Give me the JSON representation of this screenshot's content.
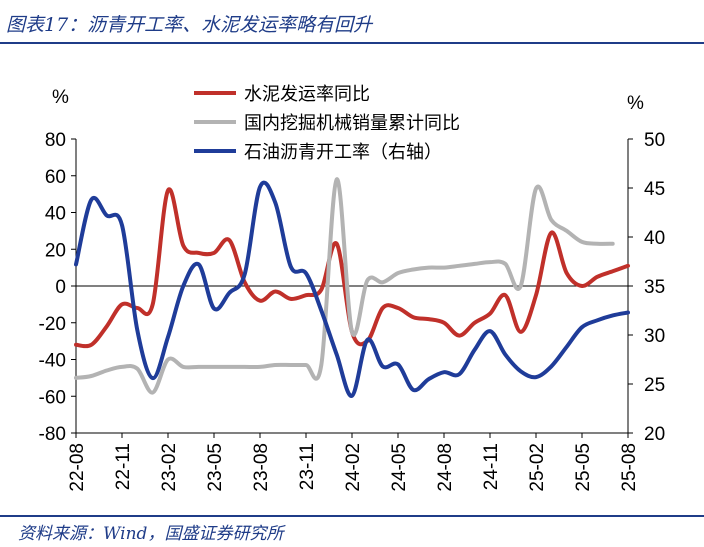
{
  "title": "图表17：沥青开工率、水泥发运率略有回升",
  "source": "资料来源：Wind，国盛证券研究所",
  "chart_data": {
    "type": "line",
    "left_unit": "%",
    "right_unit": "%",
    "ylim_left": [
      -80,
      80
    ],
    "yticks_left": [
      "80",
      "60",
      "40",
      "20",
      "0",
      "-20",
      "-40",
      "-60",
      "-80"
    ],
    "ylim_right": [
      20,
      50
    ],
    "yticks_right": [
      "50",
      "45",
      "40",
      "35",
      "30",
      "25",
      "20"
    ],
    "xlim": [
      "2022-08",
      "2025-08"
    ],
    "x_tick_labels": [
      "22-08",
      "22-11",
      "23-02",
      "23-05",
      "23-08",
      "23-11",
      "24-02",
      "24-05",
      "24-08",
      "24-11",
      "25-02",
      "25-05",
      "25-08"
    ],
    "legend": {
      "position": "top-center"
    },
    "series": [
      {
        "name": "水泥发运率同比",
        "color": "#c0302a",
        "axis": "left",
        "points": [
          [
            "2022-08",
            -32
          ],
          [
            "2022-09",
            -32
          ],
          [
            "2022-10",
            -22
          ],
          [
            "2022-11",
            -10
          ],
          [
            "2022-12",
            -12
          ],
          [
            "2023-01",
            -10
          ],
          [
            "2023-02",
            52
          ],
          [
            "2023-03",
            22
          ],
          [
            "2023-04",
            18
          ],
          [
            "2023-05",
            18
          ],
          [
            "2023-06",
            25
          ],
          [
            "2023-07",
            2
          ],
          [
            "2023-08",
            -8
          ],
          [
            "2023-09",
            -3
          ],
          [
            "2023-10",
            -7
          ],
          [
            "2023-11",
            -5
          ],
          [
            "2023-12",
            -2
          ],
          [
            "2024-01",
            23
          ],
          [
            "2024-02",
            -25
          ],
          [
            "2024-03",
            -30
          ],
          [
            "2024-04",
            -12
          ],
          [
            "2024-05",
            -12
          ],
          [
            "2024-06",
            -17
          ],
          [
            "2024-07",
            -18
          ],
          [
            "2024-08",
            -20
          ],
          [
            "2024-09",
            -27
          ],
          [
            "2024-10",
            -20
          ],
          [
            "2024-11",
            -15
          ],
          [
            "2024-12",
            -5
          ],
          [
            "2025-01",
            -25
          ],
          [
            "2025-02",
            -5
          ],
          [
            "2025-03",
            29
          ],
          [
            "2025-04",
            7
          ],
          [
            "2025-05",
            0
          ],
          [
            "2025-06",
            5
          ],
          [
            "2025-07",
            8
          ],
          [
            "2025-08",
            11
          ]
        ]
      },
      {
        "name": "国内挖掘机械销量累计同比",
        "color": "#b3b3b3",
        "axis": "left",
        "points": [
          [
            "2022-08",
            -50
          ],
          [
            "2022-09",
            -49
          ],
          [
            "2022-10",
            -46
          ],
          [
            "2022-11",
            -44
          ],
          [
            "2022-12",
            -45
          ],
          [
            "2023-01",
            -58
          ],
          [
            "2023-02",
            -40
          ],
          [
            "2023-03",
            -44
          ],
          [
            "2023-04",
            -44
          ],
          [
            "2023-05",
            -44
          ],
          [
            "2023-06",
            -44
          ],
          [
            "2023-07",
            -44
          ],
          [
            "2023-08",
            -44
          ],
          [
            "2023-09",
            -43
          ],
          [
            "2023-10",
            -43
          ],
          [
            "2023-11",
            -43
          ],
          [
            "2023-12",
            -43
          ],
          [
            "2024-01",
            58
          ],
          [
            "2024-02",
            -25
          ],
          [
            "2024-03",
            3
          ],
          [
            "2024-04",
            2
          ],
          [
            "2024-05",
            7
          ],
          [
            "2024-06",
            9
          ],
          [
            "2024-07",
            10
          ],
          [
            "2024-08",
            10
          ],
          [
            "2024-09",
            11
          ],
          [
            "2024-10",
            12
          ],
          [
            "2024-11",
            13
          ],
          [
            "2024-12",
            12
          ],
          [
            "2025-01",
            0
          ],
          [
            "2025-02",
            53
          ],
          [
            "2025-03",
            36
          ],
          [
            "2025-04",
            30
          ],
          [
            "2025-05",
            24
          ],
          [
            "2025-06",
            23
          ],
          [
            "2025-07",
            23
          ]
        ]
      },
      {
        "name": "石油沥青开工率（右轴）",
        "color": "#1f3c99",
        "axis": "right",
        "points": [
          [
            "2022-08",
            37.2
          ],
          [
            "2022-09",
            43.8
          ],
          [
            "2022-10",
            42.2
          ],
          [
            "2022-11",
            41.2
          ],
          [
            "2022-12",
            30.5
          ],
          [
            "2023-01",
            25.6
          ],
          [
            "2023-02",
            29.8
          ],
          [
            "2023-03",
            35.0
          ],
          [
            "2023-04",
            37.2
          ],
          [
            "2023-05",
            32.7
          ],
          [
            "2023-06",
            34.3
          ],
          [
            "2023-07",
            36.2
          ],
          [
            "2023-08",
            45.1
          ],
          [
            "2023-09",
            43.5
          ],
          [
            "2023-10",
            37.0
          ],
          [
            "2023-11",
            36.3
          ],
          [
            "2023-12",
            32.5
          ],
          [
            "2024-01",
            28.0
          ],
          [
            "2024-02",
            23.8
          ],
          [
            "2024-03",
            29.5
          ],
          [
            "2024-04",
            26.8
          ],
          [
            "2024-05",
            27.0
          ],
          [
            "2024-06",
            24.4
          ],
          [
            "2024-07",
            25.5
          ],
          [
            "2024-08",
            26.2
          ],
          [
            "2024-09",
            26.0
          ],
          [
            "2024-10",
            28.5
          ],
          [
            "2024-11",
            30.4
          ],
          [
            "2024-12",
            28.0
          ],
          [
            "2025-01",
            26.3
          ],
          [
            "2025-02",
            25.7
          ],
          [
            "2025-03",
            26.8
          ],
          [
            "2025-04",
            28.8
          ],
          [
            "2025-05",
            30.8
          ],
          [
            "2025-06",
            31.5
          ],
          [
            "2025-07",
            32.0
          ],
          [
            "2025-08",
            32.3
          ]
        ]
      }
    ]
  }
}
